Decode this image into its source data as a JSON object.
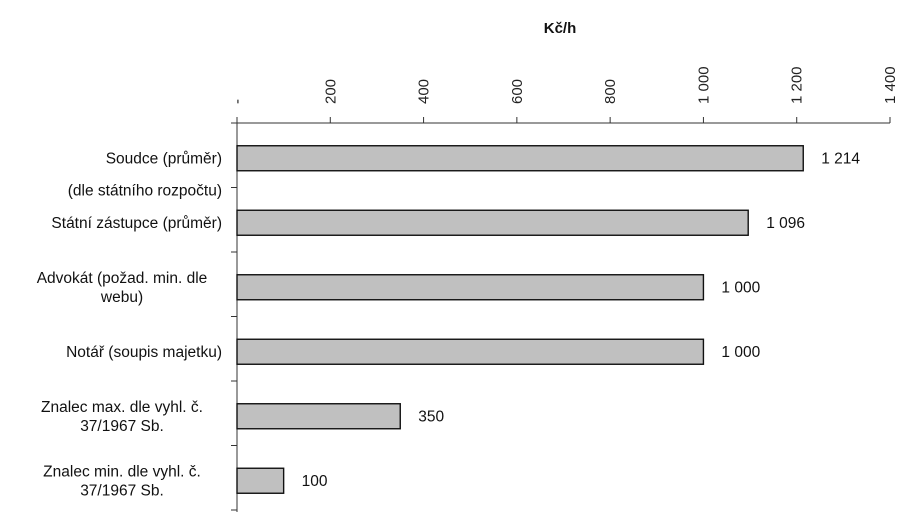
{
  "chart_data": {
    "type": "bar",
    "orientation": "horizontal",
    "title": "Kč/h",
    "xlabel": "Kč/h",
    "ylabel": "",
    "xlim": [
      0,
      1400
    ],
    "tick_values": [
      0,
      200,
      400,
      600,
      800,
      1000,
      1200,
      1400
    ],
    "tick_labels": [
      "-",
      "200",
      "400",
      "600",
      "800",
      "1 000",
      "1 200",
      "1 400"
    ],
    "grid": false,
    "legend": "none",
    "bar_color": "#c0c0c0",
    "categories": [
      [
        "Soudce (průměr)",
        "(dle státního rozpočtu)"
      ],
      [
        "Státní zástupce (průměr)"
      ],
      [
        "Advokát (požad. min. dle",
        "webu)"
      ],
      [
        "Notář (soupis majetku)"
      ],
      [
        "Znalec max. dle vyhl. č.",
        "37/1967 Sb."
      ],
      [
        "Znalec min. dle vyhl. č.",
        "37/1967 Sb."
      ]
    ],
    "values": [
      1214,
      1096,
      1000,
      1000,
      350,
      100
    ],
    "value_labels": [
      "1 214",
      "1 096",
      "1 000",
      "1 000",
      "350",
      "100"
    ]
  }
}
